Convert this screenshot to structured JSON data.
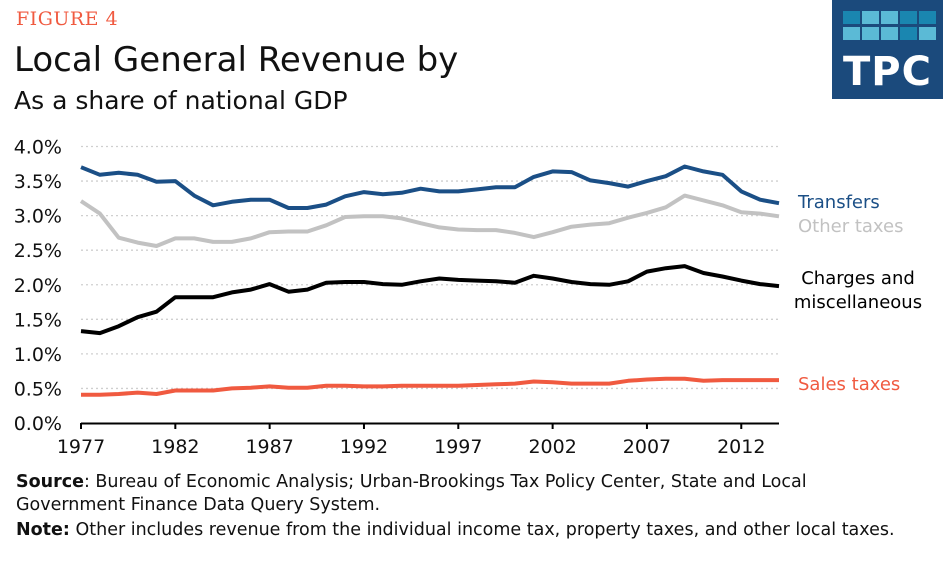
{
  "header": {
    "figure_label": "FIGURE 4",
    "title": "Local General Revenue by",
    "subtitle": "As a share of national GDP"
  },
  "logo": {
    "text": "TPC"
  },
  "colors": {
    "transfers": "#1b4f86",
    "other_taxes": "#c2c2c2",
    "charges": "#000000",
    "sales": "#f05a40",
    "accent": "#f05a40",
    "logo_bg": "#1b4a7c"
  },
  "chart_data": {
    "type": "line",
    "title": "Local General Revenue by",
    "subtitle": "As a share of national GDP",
    "xlabel": "",
    "ylabel": "",
    "x": [
      1977,
      1978,
      1979,
      1980,
      1981,
      1982,
      1983,
      1984,
      1985,
      1986,
      1987,
      1988,
      1989,
      1990,
      1991,
      1992,
      1993,
      1994,
      1995,
      1996,
      1997,
      1998,
      1999,
      2000,
      2001,
      2002,
      2003,
      2004,
      2005,
      2006,
      2007,
      2008,
      2009,
      2010,
      2011,
      2012,
      2013,
      2014
    ],
    "xlim": [
      1977,
      2014
    ],
    "ylim": [
      0,
      4
    ],
    "grid": true,
    "x_ticks": [
      1977,
      1982,
      1987,
      1992,
      1997,
      2002,
      2007,
      2012
    ],
    "y_ticks": [
      0,
      0.5,
      1,
      1.5,
      2,
      2.5,
      3,
      3.5,
      4
    ],
    "y_tick_labels": [
      "0.0%",
      "0.5%",
      "1.0%",
      "1.5%",
      "2.0%",
      "2.5%",
      "3.0%",
      "3.5%",
      "4.0%"
    ],
    "legend_placement": "right (direct labels)",
    "series": [
      {
        "name": "Transfers",
        "key": "transfers",
        "values": [
          3.7,
          3.59,
          3.62,
          3.59,
          3.49,
          3.5,
          3.29,
          3.15,
          3.2,
          3.23,
          3.23,
          3.11,
          3.11,
          3.16,
          3.28,
          3.34,
          3.31,
          3.33,
          3.39,
          3.35,
          3.35,
          3.38,
          3.41,
          3.41,
          3.56,
          3.64,
          3.63,
          3.51,
          3.47,
          3.42,
          3.5,
          3.57,
          3.71,
          3.64,
          3.59,
          3.35,
          3.23,
          3.18
        ]
      },
      {
        "name": "Other taxes",
        "key": "other_taxes",
        "values": [
          3.21,
          3.03,
          2.68,
          2.61,
          2.56,
          2.67,
          2.67,
          2.62,
          2.62,
          2.67,
          2.76,
          2.77,
          2.77,
          2.86,
          2.98,
          2.99,
          2.99,
          2.96,
          2.89,
          2.83,
          2.8,
          2.79,
          2.79,
          2.75,
          2.69,
          2.76,
          2.84,
          2.87,
          2.89,
          2.97,
          3.04,
          3.12,
          3.29,
          3.22,
          3.15,
          3.05,
          3.03,
          2.99
        ]
      },
      {
        "name": "Charges and miscellaneous",
        "key": "charges",
        "label_lines": [
          "Charges and",
          "miscellaneous"
        ],
        "values": [
          1.33,
          1.3,
          1.4,
          1.53,
          1.61,
          1.82,
          1.82,
          1.82,
          1.89,
          1.93,
          2.01,
          1.9,
          1.93,
          2.03,
          2.04,
          2.04,
          2.01,
          2.0,
          2.05,
          2.09,
          2.07,
          2.06,
          2.05,
          2.03,
          2.13,
          2.09,
          2.04,
          2.01,
          2.0,
          2.05,
          2.19,
          2.24,
          2.27,
          2.17,
          2.12,
          2.06,
          2.01,
          1.98
        ]
      },
      {
        "name": "Sales taxes",
        "key": "sales",
        "values": [
          0.41,
          0.41,
          0.42,
          0.44,
          0.42,
          0.47,
          0.47,
          0.47,
          0.5,
          0.51,
          0.53,
          0.51,
          0.51,
          0.54,
          0.54,
          0.53,
          0.53,
          0.54,
          0.54,
          0.54,
          0.54,
          0.55,
          0.56,
          0.57,
          0.6,
          0.59,
          0.57,
          0.57,
          0.57,
          0.61,
          0.63,
          0.64,
          0.64,
          0.61,
          0.62,
          0.62,
          0.62,
          0.62
        ]
      }
    ]
  },
  "footer": {
    "source_label": "Source",
    "source_text": ": Bureau of Economic Analysis; Urban-Brookings Tax Policy Center, State and Local Government Finance Data Query System.",
    "note_label": "Note:",
    "note_text": " Other includes revenue from the individual income tax, property taxes, and other local taxes."
  }
}
